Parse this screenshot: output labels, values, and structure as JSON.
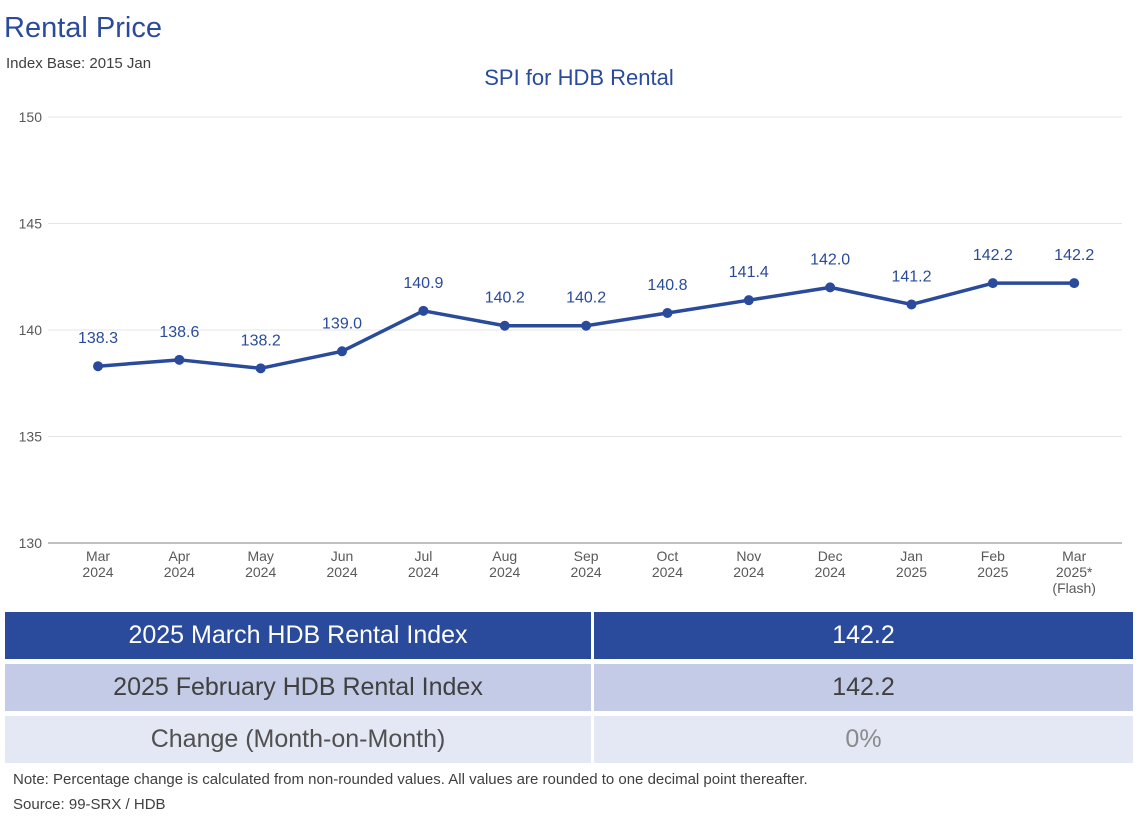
{
  "header": {
    "title": "Rental Price",
    "index_base": "Index Base: 2015 Jan"
  },
  "chart_data": {
    "type": "line",
    "title": "SPI for HDB Rental",
    "xlabel": "",
    "ylabel": "",
    "categories": [
      [
        "Mar",
        "2024"
      ],
      [
        "Apr",
        "2024"
      ],
      [
        "May",
        "2024"
      ],
      [
        "Jun",
        "2024"
      ],
      [
        "Jul",
        "2024"
      ],
      [
        "Aug",
        "2024"
      ],
      [
        "Sep",
        "2024"
      ],
      [
        "Oct",
        "2024"
      ],
      [
        "Nov",
        "2024"
      ],
      [
        "Dec",
        "2024"
      ],
      [
        "Jan",
        "2025"
      ],
      [
        "Feb",
        "2025"
      ],
      [
        "Mar",
        "2025*",
        "(Flash)"
      ]
    ],
    "values": [
      138.3,
      138.6,
      138.2,
      139.0,
      140.9,
      140.2,
      140.2,
      140.8,
      141.4,
      142.0,
      141.2,
      142.2,
      142.2
    ],
    "data_labels": [
      "138.3",
      "138.6",
      "138.2",
      "139.0",
      "140.9",
      "140.2",
      "140.2",
      "140.8",
      "141.4",
      "142.0",
      "141.2",
      "142.2",
      "142.2"
    ],
    "ylim": [
      130,
      150
    ],
    "yticks": [
      130,
      135,
      140,
      145,
      150
    ],
    "grid": true,
    "legend": "none",
    "colors": {
      "line": "#2a4b9b",
      "label": "#2a4b9b",
      "grid": "#e4e4e4",
      "axis": "#808080"
    }
  },
  "summary_table": {
    "rows": [
      {
        "label": "2025 March HDB Rental Index",
        "value": "142.2"
      },
      {
        "label": "2025 February HDB Rental Index",
        "value": "142.2"
      },
      {
        "label": "Change (Month-on-Month)",
        "value": "0%"
      }
    ]
  },
  "footer": {
    "note": "Note: Percentage change is calculated from non-rounded values.  All values are rounded to one decimal point thereafter.",
    "source": "Source: 99-SRX / HDB"
  }
}
